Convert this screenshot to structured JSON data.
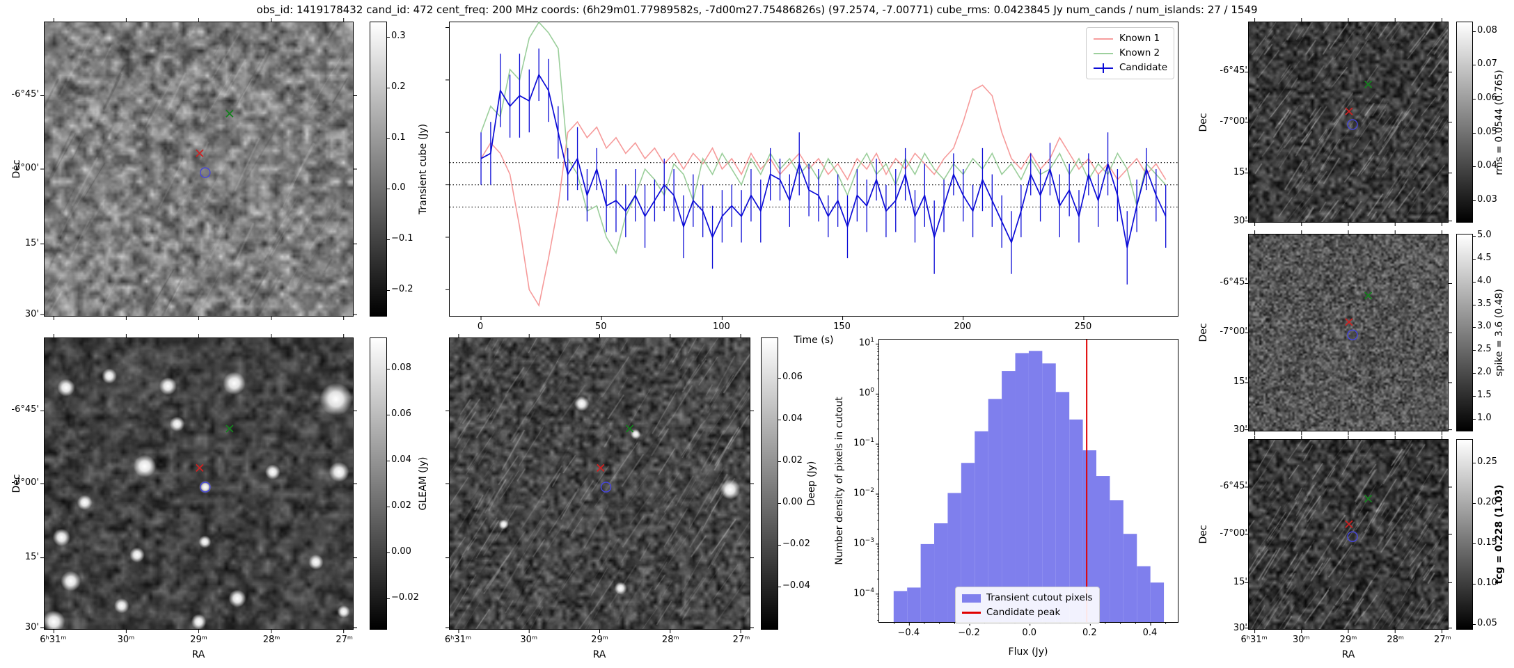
{
  "title": "obs_id: 1419178432 cand_id: 472 cent_freq: 200 MHz coords: (6h29m01.77989582s, -7d00m27.75486826s) (97.2574, -7.00771) cube_rms: 0.0423845 Jy num_cands / num_islands: 27 / 1549",
  "axes": {
    "dec_label": "Dec",
    "ra_label": "RA",
    "dec_ticks": [
      "-6°45'",
      "-7°00'",
      "15'",
      "30'"
    ],
    "ra_ticks": [
      "6ʰ31ᵐ",
      "30ᵐ",
      "29ᵐ",
      "28ᵐ",
      "27ᵐ"
    ]
  },
  "markers": {
    "known1_color": "#cc2222",
    "known2_color": "#15801e",
    "candidate_contour_color": "#4646d8"
  },
  "colorbars": {
    "transient": {
      "label": "Transient cube (Jy)",
      "ticks": [
        "0.3",
        "0.2",
        "0.1",
        "0.0",
        "−0.1",
        "−0.2"
      ]
    },
    "gleam": {
      "label": "GLEAM (Jy)",
      "ticks": [
        "0.08",
        "0.06",
        "0.04",
        "0.02",
        "0.00",
        "−0.02"
      ]
    },
    "deep": {
      "label": "Deep (Jy)",
      "ticks": [
        "0.06",
        "0.04",
        "0.02",
        "0.00",
        "−0.02",
        "−0.04"
      ]
    },
    "rms": {
      "label": "rms = 0.0544 (0.765)",
      "ticks": [
        "0.08",
        "0.07",
        "0.06",
        "0.05",
        "0.04",
        "0.03"
      ]
    },
    "spike": {
      "label": "spike = 3.6 (0.48)",
      "ticks": [
        "5.0",
        "4.5",
        "4.0",
        "3.5",
        "3.0",
        "2.5",
        "2.0",
        "1.5",
        "1.0"
      ]
    },
    "tcg": {
      "label": "tcg = 0.228 (1.03)",
      "ticks": [
        "0.25",
        "0.20",
        "0.15",
        "0.10",
        "0.05"
      ]
    }
  },
  "chart_data": [
    {
      "id": "lightcurve",
      "type": "line",
      "xlabel": "Time (s)",
      "ylabel": "",
      "xlim": [
        -13,
        289
      ],
      "ylim": [
        -0.25,
        0.31
      ],
      "xticks": [
        0,
        50,
        100,
        150,
        200,
        250
      ],
      "yticks_unlabeled": [
        0.3,
        0.2,
        0.1,
        0.0,
        -0.1,
        -0.2
      ],
      "rms_level": 0.0423845,
      "dotted_lines": [
        0.0423845,
        0.0,
        -0.0423845
      ],
      "legend_position": "upper right",
      "x": [
        0,
        4,
        8,
        12,
        16,
        20,
        24,
        28,
        32,
        36,
        40,
        44,
        48,
        52,
        56,
        60,
        64,
        68,
        72,
        76,
        80,
        84,
        88,
        92,
        96,
        100,
        104,
        108,
        112,
        116,
        120,
        124,
        128,
        132,
        136,
        140,
        144,
        148,
        152,
        156,
        160,
        164,
        168,
        172,
        176,
        180,
        184,
        188,
        192,
        196,
        200,
        204,
        208,
        212,
        216,
        220,
        224,
        228,
        232,
        236,
        240,
        244,
        248,
        252,
        256,
        260,
        264,
        268,
        272,
        276,
        280,
        284
      ],
      "series": [
        {
          "name": "Known 1",
          "color": "#f58f8f",
          "values": [
            0.05,
            0.08,
            0.06,
            0.02,
            -0.08,
            -0.2,
            -0.23,
            -0.14,
            -0.04,
            0.1,
            0.12,
            0.09,
            0.11,
            0.07,
            0.09,
            0.06,
            0.08,
            0.05,
            0.07,
            0.04,
            0.06,
            0.03,
            0.06,
            0.04,
            0.07,
            0.03,
            0.05,
            0.02,
            0.06,
            0.03,
            0.05,
            0.02,
            0.04,
            0.06,
            0.03,
            0.05,
            0.02,
            0.04,
            0.01,
            0.05,
            0.03,
            0.06,
            0.02,
            0.05,
            0.03,
            0.06,
            0.04,
            0.02,
            0.05,
            0.07,
            0.12,
            0.18,
            0.19,
            0.17,
            0.1,
            0.05,
            0.03,
            0.06,
            0.03,
            0.05,
            0.09,
            0.06,
            0.03,
            0.05,
            0.02,
            0.04,
            0.01,
            0.03,
            0.05,
            0.02,
            0.04,
            0.01
          ]
        },
        {
          "name": "Known 2",
          "color": "#8fc98f",
          "values": [
            0.1,
            0.15,
            0.13,
            0.22,
            0.2,
            0.28,
            0.31,
            0.29,
            0.26,
            0.05,
            0.02,
            -0.05,
            -0.04,
            -0.1,
            -0.13,
            -0.06,
            -0.02,
            0.03,
            0.01,
            -0.02,
            0.04,
            0.02,
            -0.03,
            0.05,
            0.02,
            0.06,
            0.03,
            0.0,
            0.05,
            0.02,
            0.06,
            0.03,
            0.05,
            0.02,
            0.04,
            0.01,
            0.05,
            0.02,
            -0.02,
            0.03,
            0.06,
            0.02,
            0.04,
            0.0,
            0.05,
            0.02,
            0.06,
            0.03,
            0.01,
            0.04,
            0.02,
            0.05,
            0.03,
            0.06,
            0.02,
            0.04,
            0.01,
            0.05,
            0.02,
            0.03,
            0.06,
            0.02,
            0.05,
            0.01,
            0.04,
            0.02,
            0.06,
            0.03,
            -0.04,
            0.04,
            0.02,
            0.0
          ]
        },
        {
          "name": "Candidate",
          "color": "#0b0bd6",
          "values": [
            0.05,
            0.06,
            0.18,
            0.15,
            0.17,
            0.16,
            0.21,
            0.18,
            0.1,
            0.02,
            0.05,
            -0.02,
            0.03,
            -0.04,
            -0.03,
            -0.05,
            -0.02,
            -0.06,
            -0.03,
            0.0,
            -0.02,
            -0.08,
            -0.03,
            -0.05,
            -0.1,
            -0.06,
            -0.04,
            -0.06,
            -0.02,
            -0.05,
            0.02,
            0.01,
            -0.03,
            0.04,
            -0.01,
            -0.02,
            -0.06,
            -0.03,
            -0.08,
            -0.02,
            -0.04,
            0.01,
            -0.05,
            -0.03,
            0.02,
            -0.06,
            -0.02,
            -0.1,
            -0.04,
            0.02,
            -0.02,
            -0.05,
            0.01,
            -0.03,
            -0.07,
            -0.11,
            -0.05,
            0.02,
            -0.02,
            0.03,
            -0.04,
            -0.01,
            -0.06,
            0.02,
            -0.03,
            0.04,
            -0.02,
            -0.12,
            -0.04,
            0.03,
            -0.02,
            -0.06
          ],
          "errors": [
            0.05,
            0.06,
            0.07,
            0.06,
            0.08,
            0.06,
            0.05,
            0.06,
            0.05,
            0.05,
            0.06,
            0.05,
            0.04,
            0.05,
            0.06,
            0.05,
            0.05,
            0.06,
            0.04,
            0.05,
            0.05,
            0.06,
            0.05,
            0.05,
            0.06,
            0.05,
            0.04,
            0.05,
            0.05,
            0.06,
            0.05,
            0.04,
            0.05,
            0.06,
            0.05,
            0.05,
            0.04,
            0.05,
            0.06,
            0.05,
            0.05,
            0.04,
            0.05,
            0.06,
            0.05,
            0.05,
            0.06,
            0.07,
            0.05,
            0.04,
            0.05,
            0.05,
            0.06,
            0.05,
            0.05,
            0.06,
            0.05,
            0.04,
            0.05,
            0.05,
            0.06,
            0.05,
            0.05,
            0.04,
            0.05,
            0.06,
            0.05,
            0.07,
            0.05,
            0.04,
            0.05,
            0.06
          ]
        }
      ],
      "legend": [
        "Known 1",
        "Known 2",
        "Candidate"
      ]
    },
    {
      "id": "pixel_histogram",
      "type": "bar",
      "xlabel": "Flux (Jy)",
      "ylabel": "Number density of pixels in cutout",
      "xlim": [
        -0.5,
        0.49
      ],
      "xticks": [
        -0.4,
        -0.2,
        0.0,
        0.2,
        0.4
      ],
      "yticks_exp": [
        1,
        0,
        -1,
        -2,
        -3,
        -4
      ],
      "ylog_range_exp": [
        1.09,
        -4.56
      ],
      "bin_start": -0.452,
      "bin_width": 0.0448,
      "values": [
        0.000115,
        0.000135,
        0.001,
        0.0026,
        0.0105,
        0.042,
        0.18,
        0.8,
        2.9,
        6.6,
        7.3,
        4.1,
        1.1,
        0.31,
        0.075,
        0.023,
        0.0075,
        0.0016,
        0.00036,
        0.00017
      ],
      "candidate_peak": 0.188,
      "bar_color": "#7f7fed",
      "line_color": "#e00000",
      "legend": [
        "Transient cutout pixels",
        "Candidate peak"
      ]
    }
  ]
}
